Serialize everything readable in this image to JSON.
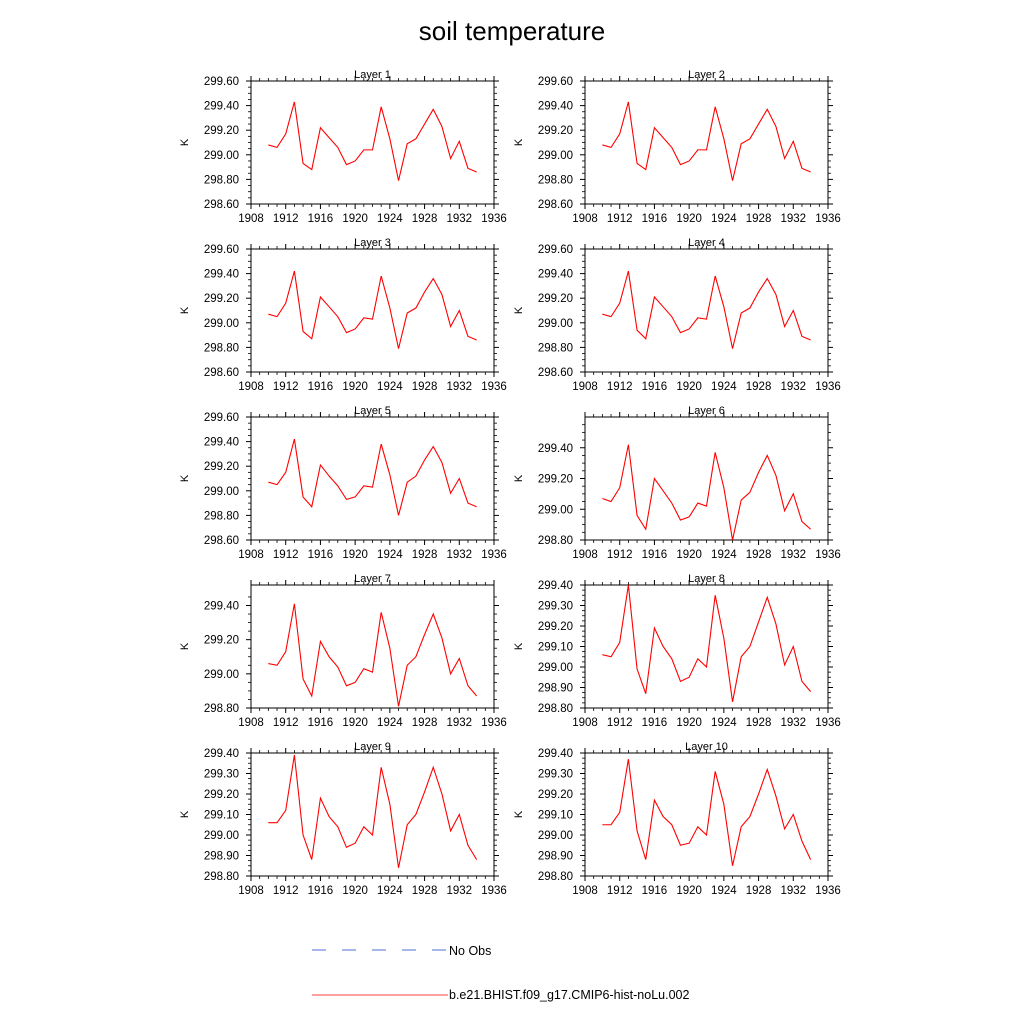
{
  "title": "soil temperature",
  "legend": [
    {
      "label": "No Obs",
      "color": "#4f6fd8",
      "style": "dashed"
    },
    {
      "label": "b.e21.BHIST.f09_g17.CMIP6-hist-noLu.002",
      "color": "#ff0000",
      "style": "solid"
    }
  ],
  "chart_data": [
    {
      "type": "line",
      "title": "Layer 1",
      "ylabel": "K",
      "xlim": [
        1908,
        1936
      ],
      "x_ticks": [
        "1908",
        "1912",
        "1916",
        "1920",
        "1924",
        "1928",
        "1932",
        "1936"
      ],
      "ylim": [
        298.6,
        299.6
      ],
      "y_ticks": [
        "298.60",
        "298.80",
        "299.00",
        "299.20",
        "299.40",
        "299.60"
      ],
      "y_minor": 0.05,
      "series": [
        {
          "name": "b.e21.BHIST.f09_g17.CMIP6-hist-noLu.002",
          "x": [
            1910,
            1911,
            1912,
            1913,
            1914,
            1915,
            1916,
            1917,
            1918,
            1919,
            1920,
            1921,
            1922,
            1923,
            1924,
            1925,
            1926,
            1927,
            1928,
            1929,
            1930,
            1931,
            1932,
            1933,
            1934
          ],
          "values": [
            299.08,
            299.06,
            299.17,
            299.43,
            298.93,
            298.88,
            299.22,
            299.14,
            299.06,
            298.92,
            298.95,
            299.04,
            299.04,
            299.39,
            299.13,
            298.79,
            299.09,
            299.13,
            299.25,
            299.37,
            299.23,
            298.97,
            299.11,
            298.89,
            298.86
          ]
        }
      ]
    },
    {
      "type": "line",
      "title": "Layer 2",
      "ylabel": "K",
      "xlim": [
        1908,
        1936
      ],
      "x_ticks": [
        "1908",
        "1912",
        "1916",
        "1920",
        "1924",
        "1928",
        "1932",
        "1936"
      ],
      "ylim": [
        298.6,
        299.6
      ],
      "y_ticks": [
        "298.60",
        "298.80",
        "299.00",
        "299.20",
        "299.40",
        "299.60"
      ],
      "y_minor": 0.05,
      "series": [
        {
          "name": "b.e21.BHIST.f09_g17.CMIP6-hist-noLu.002",
          "x": [
            1910,
            1911,
            1912,
            1913,
            1914,
            1915,
            1916,
            1917,
            1918,
            1919,
            1920,
            1921,
            1922,
            1923,
            1924,
            1925,
            1926,
            1927,
            1928,
            1929,
            1930,
            1931,
            1932,
            1933,
            1934
          ],
          "values": [
            299.08,
            299.06,
            299.17,
            299.43,
            298.93,
            298.88,
            299.22,
            299.14,
            299.06,
            298.92,
            298.95,
            299.04,
            299.04,
            299.39,
            299.13,
            298.79,
            299.09,
            299.13,
            299.25,
            299.37,
            299.23,
            298.97,
            299.11,
            298.89,
            298.86
          ]
        }
      ]
    },
    {
      "type": "line",
      "title": "Layer 3",
      "ylabel": "K",
      "xlim": [
        1908,
        1936
      ],
      "x_ticks": [
        "1908",
        "1912",
        "1916",
        "1920",
        "1924",
        "1928",
        "1932",
        "1936"
      ],
      "ylim": [
        298.6,
        299.6
      ],
      "y_ticks": [
        "298.60",
        "298.80",
        "299.00",
        "299.20",
        "299.40",
        "299.60"
      ],
      "y_minor": 0.05,
      "series": [
        {
          "name": "b.e21.BHIST.f09_g17.CMIP6-hist-noLu.002",
          "x": [
            1910,
            1911,
            1912,
            1913,
            1914,
            1915,
            1916,
            1917,
            1918,
            1919,
            1920,
            1921,
            1922,
            1923,
            1924,
            1925,
            1926,
            1927,
            1928,
            1929,
            1930,
            1931,
            1932,
            1933,
            1934
          ],
          "values": [
            299.07,
            299.05,
            299.16,
            299.42,
            298.93,
            298.87,
            299.21,
            299.13,
            299.05,
            298.92,
            298.95,
            299.04,
            299.03,
            299.38,
            299.12,
            298.79,
            299.08,
            299.12,
            299.25,
            299.36,
            299.23,
            298.97,
            299.1,
            298.89,
            298.86
          ]
        }
      ]
    },
    {
      "type": "line",
      "title": "Layer 4",
      "ylabel": "K",
      "xlim": [
        1908,
        1936
      ],
      "x_ticks": [
        "1908",
        "1912",
        "1916",
        "1920",
        "1924",
        "1928",
        "1932",
        "1936"
      ],
      "ylim": [
        298.6,
        299.6
      ],
      "y_ticks": [
        "298.60",
        "298.80",
        "299.00",
        "299.20",
        "299.40",
        "299.60"
      ],
      "y_minor": 0.05,
      "series": [
        {
          "name": "b.e21.BHIST.f09_g17.CMIP6-hist-noLu.002",
          "x": [
            1910,
            1911,
            1912,
            1913,
            1914,
            1915,
            1916,
            1917,
            1918,
            1919,
            1920,
            1921,
            1922,
            1923,
            1924,
            1925,
            1926,
            1927,
            1928,
            1929,
            1930,
            1931,
            1932,
            1933,
            1934
          ],
          "values": [
            299.07,
            299.05,
            299.16,
            299.42,
            298.94,
            298.87,
            299.21,
            299.13,
            299.05,
            298.92,
            298.95,
            299.04,
            299.03,
            299.38,
            299.13,
            298.79,
            299.08,
            299.12,
            299.25,
            299.36,
            299.23,
            298.97,
            299.1,
            298.89,
            298.86
          ]
        }
      ]
    },
    {
      "type": "line",
      "title": "Layer 5",
      "ylabel": "K",
      "xlim": [
        1908,
        1936
      ],
      "x_ticks": [
        "1908",
        "1912",
        "1916",
        "1920",
        "1924",
        "1928",
        "1932",
        "1936"
      ],
      "ylim": [
        298.6,
        299.6
      ],
      "y_ticks": [
        "298.60",
        "298.80",
        "299.00",
        "299.20",
        "299.40",
        "299.60"
      ],
      "y_minor": 0.05,
      "series": [
        {
          "name": "b.e21.BHIST.f09_g17.CMIP6-hist-noLu.002",
          "x": [
            1910,
            1911,
            1912,
            1913,
            1914,
            1915,
            1916,
            1917,
            1918,
            1919,
            1920,
            1921,
            1922,
            1923,
            1924,
            1925,
            1926,
            1927,
            1928,
            1929,
            1930,
            1931,
            1932,
            1933,
            1934
          ],
          "values": [
            299.07,
            299.05,
            299.15,
            299.42,
            298.95,
            298.87,
            299.21,
            299.12,
            299.04,
            298.93,
            298.95,
            299.04,
            299.03,
            299.38,
            299.13,
            298.8,
            299.07,
            299.12,
            299.25,
            299.36,
            299.23,
            298.98,
            299.1,
            298.9,
            298.87
          ]
        }
      ]
    },
    {
      "type": "line",
      "title": "Layer 6",
      "ylabel": "K",
      "xlim": [
        1908,
        1936
      ],
      "x_ticks": [
        "1908",
        "1912",
        "1916",
        "1920",
        "1924",
        "1928",
        "1932",
        "1936"
      ],
      "ylim": [
        298.8,
        299.6
      ],
      "y_ticks": [
        "298.80",
        "299.00",
        "299.20",
        "299.40"
      ],
      "y_minor": 0.05,
      "series": [
        {
          "name": "b.e21.BHIST.f09_g17.CMIP6-hist-noLu.002",
          "x": [
            1910,
            1911,
            1912,
            1913,
            1914,
            1915,
            1916,
            1917,
            1918,
            1919,
            1920,
            1921,
            1922,
            1923,
            1924,
            1925,
            1926,
            1927,
            1928,
            1929,
            1930,
            1931,
            1932,
            1933,
            1934
          ],
          "values": [
            299.07,
            299.05,
            299.14,
            299.42,
            298.96,
            298.87,
            299.2,
            299.12,
            299.04,
            298.93,
            298.95,
            299.04,
            299.02,
            299.37,
            299.14,
            298.8,
            299.06,
            299.11,
            299.24,
            299.35,
            299.22,
            298.99,
            299.1,
            298.92,
            298.87
          ]
        }
      ]
    },
    {
      "type": "line",
      "title": "Layer 7",
      "ylabel": "K",
      "xlim": [
        1908,
        1936
      ],
      "x_ticks": [
        "1908",
        "1912",
        "1916",
        "1920",
        "1924",
        "1928",
        "1932",
        "1936"
      ],
      "ylim": [
        298.8,
        299.52
      ],
      "y_ticks": [
        "298.80",
        "299.00",
        "299.20",
        "299.40"
      ],
      "y_minor": 0.05,
      "series": [
        {
          "name": "b.e21.BHIST.f09_g17.CMIP6-hist-noLu.002",
          "x": [
            1910,
            1911,
            1912,
            1913,
            1914,
            1915,
            1916,
            1917,
            1918,
            1919,
            1920,
            1921,
            1922,
            1923,
            1924,
            1925,
            1926,
            1927,
            1928,
            1929,
            1930,
            1931,
            1932,
            1933,
            1934
          ],
          "values": [
            299.06,
            299.05,
            299.13,
            299.41,
            298.97,
            298.87,
            299.19,
            299.1,
            299.04,
            298.93,
            298.95,
            299.03,
            299.01,
            299.36,
            299.15,
            298.81,
            299.05,
            299.1,
            299.23,
            299.35,
            299.21,
            299.0,
            299.09,
            298.93,
            298.87
          ]
        }
      ]
    },
    {
      "type": "line",
      "title": "Layer 8",
      "ylabel": "K",
      "xlim": [
        1908,
        1936
      ],
      "x_ticks": [
        "1908",
        "1912",
        "1916",
        "1920",
        "1924",
        "1928",
        "1932",
        "1936"
      ],
      "ylim": [
        298.8,
        299.4
      ],
      "y_ticks": [
        "298.80",
        "298.90",
        "299.00",
        "299.10",
        "299.20",
        "299.30",
        "299.40"
      ],
      "y_minor": 0.025,
      "series": [
        {
          "name": "b.e21.BHIST.f09_g17.CMIP6-hist-noLu.002",
          "x": [
            1910,
            1911,
            1912,
            1913,
            1914,
            1915,
            1916,
            1917,
            1918,
            1919,
            1920,
            1921,
            1922,
            1923,
            1924,
            1925,
            1926,
            1927,
            1928,
            1929,
            1930,
            1931,
            1932,
            1933,
            1934
          ],
          "values": [
            299.06,
            299.05,
            299.12,
            299.4,
            298.99,
            298.87,
            299.19,
            299.1,
            299.04,
            298.93,
            298.95,
            299.04,
            299.0,
            299.35,
            299.14,
            298.83,
            299.05,
            299.1,
            299.22,
            299.34,
            299.21,
            299.01,
            299.1,
            298.93,
            298.88
          ]
        }
      ]
    },
    {
      "type": "line",
      "title": "Layer 9",
      "ylabel": "K",
      "xlim": [
        1908,
        1936
      ],
      "x_ticks": [
        "1908",
        "1912",
        "1916",
        "1920",
        "1924",
        "1928",
        "1932",
        "1936"
      ],
      "ylim": [
        298.8,
        299.4
      ],
      "y_ticks": [
        "298.80",
        "298.90",
        "299.00",
        "299.10",
        "299.20",
        "299.30",
        "299.40"
      ],
      "y_minor": 0.025,
      "series": [
        {
          "name": "b.e21.BHIST.f09_g17.CMIP6-hist-noLu.002",
          "x": [
            1910,
            1911,
            1912,
            1913,
            1914,
            1915,
            1916,
            1917,
            1918,
            1919,
            1920,
            1921,
            1922,
            1923,
            1924,
            1925,
            1926,
            1927,
            1928,
            1929,
            1930,
            1931,
            1932,
            1933,
            1934
          ],
          "values": [
            299.06,
            299.06,
            299.12,
            299.39,
            299.0,
            298.88,
            299.18,
            299.09,
            299.04,
            298.94,
            298.96,
            299.04,
            299.0,
            299.33,
            299.15,
            298.84,
            299.05,
            299.1,
            299.21,
            299.33,
            299.2,
            299.02,
            299.1,
            298.95,
            298.88
          ]
        }
      ]
    },
    {
      "type": "line",
      "title": "Layer 10",
      "ylabel": "K",
      "xlim": [
        1908,
        1936
      ],
      "x_ticks": [
        "1908",
        "1912",
        "1916",
        "1920",
        "1924",
        "1928",
        "1932",
        "1936"
      ],
      "ylim": [
        298.8,
        299.4
      ],
      "y_ticks": [
        "298.80",
        "298.90",
        "299.00",
        "299.10",
        "299.20",
        "299.30",
        "299.40"
      ],
      "y_minor": 0.025,
      "series": [
        {
          "name": "b.e21.BHIST.f09_g17.CMIP6-hist-noLu.002",
          "x": [
            1910,
            1911,
            1912,
            1913,
            1914,
            1915,
            1916,
            1917,
            1918,
            1919,
            1920,
            1921,
            1922,
            1923,
            1924,
            1925,
            1926,
            1927,
            1928,
            1929,
            1930,
            1931,
            1932,
            1933,
            1934
          ],
          "values": [
            299.05,
            299.05,
            299.11,
            299.37,
            299.02,
            298.88,
            299.17,
            299.09,
            299.05,
            298.95,
            298.96,
            299.04,
            299.0,
            299.31,
            299.15,
            298.85,
            299.04,
            299.09,
            299.2,
            299.32,
            299.19,
            299.03,
            299.1,
            298.97,
            298.88
          ]
        }
      ]
    }
  ]
}
